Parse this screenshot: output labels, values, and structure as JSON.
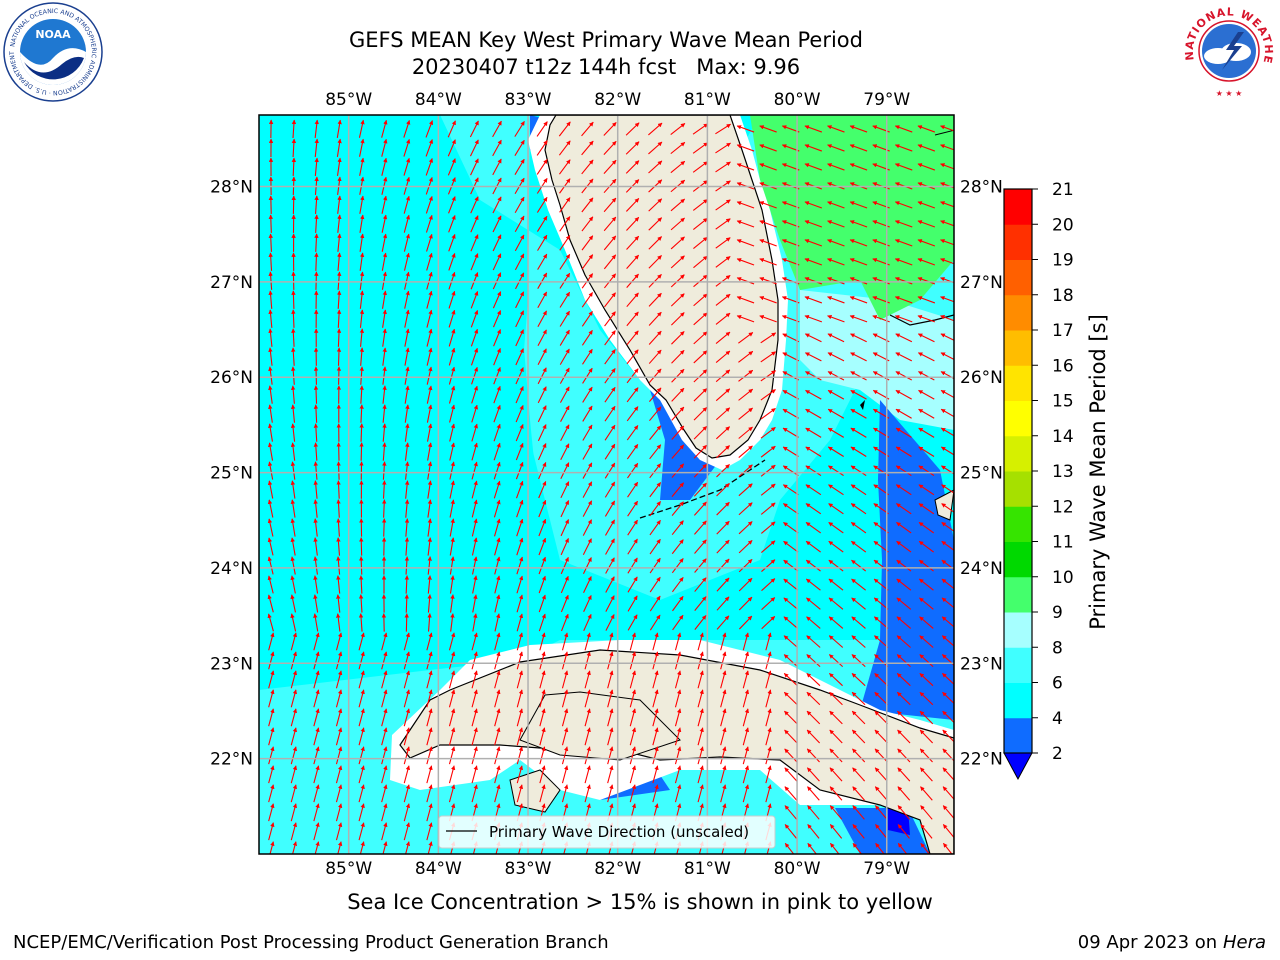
{
  "header": {
    "title_line1": "GEFS MEAN Key West Primary Wave Mean Period",
    "title_line2": "20230407 t12z 144h fcst   Max: 9.96",
    "left_logo": "noaa-logo",
    "left_logo_text": "NOAA",
    "left_logo_ring_text": "NATIONAL OCEANIC AND ATMOSPHERIC ADMINISTRATION · U.S. DEPARTMENT OF COMMERCE",
    "right_logo": "nws-logo",
    "right_logo_ring_text": "NATIONAL WEATHER SERVICE"
  },
  "map": {
    "lon_ticks": [
      "85°W",
      "84°W",
      "83°W",
      "82°W",
      "81°W",
      "80°W",
      "79°W"
    ],
    "lat_ticks": [
      "28°N",
      "27°N",
      "26°N",
      "25°N",
      "24°N",
      "23°N",
      "22°N"
    ],
    "lon_range": [
      -86.0,
      -78.25
    ],
    "lat_range": [
      21.0,
      28.75
    ],
    "grid": true,
    "land_color": "#efecdc",
    "arrow_color": "#ff0000",
    "legend_label": "Primary Wave Direction (unscaled)",
    "legend_placement": "bottom-center"
  },
  "colorbar": {
    "label": "Primary Wave Mean Period [s]",
    "ticks": [
      "2",
      "4",
      "6",
      "8",
      "9",
      "10",
      "11",
      "12",
      "13",
      "14",
      "15",
      "16",
      "17",
      "18",
      "19",
      "20",
      "21"
    ],
    "colors": [
      "#0000ff",
      "#0f6cff",
      "#00ffff",
      "#40ffff",
      "#a6ffff",
      "#44ff6c",
      "#00d900",
      "#36e400",
      "#a6e000",
      "#d6f000",
      "#ffff00",
      "#ffe400",
      "#ffbd00",
      "#ff8c00",
      "#ff6000",
      "#ff3000",
      "#ff0000"
    ],
    "extend": "min"
  },
  "note": "Sea Ice Concentration > 15% is shown in pink to yellow",
  "footer": {
    "left": "NCEP/EMC/Verification Post Processing Product Generation Branch",
    "right_prefix": "09 Apr 2023 on ",
    "right_italic": "Hera"
  }
}
